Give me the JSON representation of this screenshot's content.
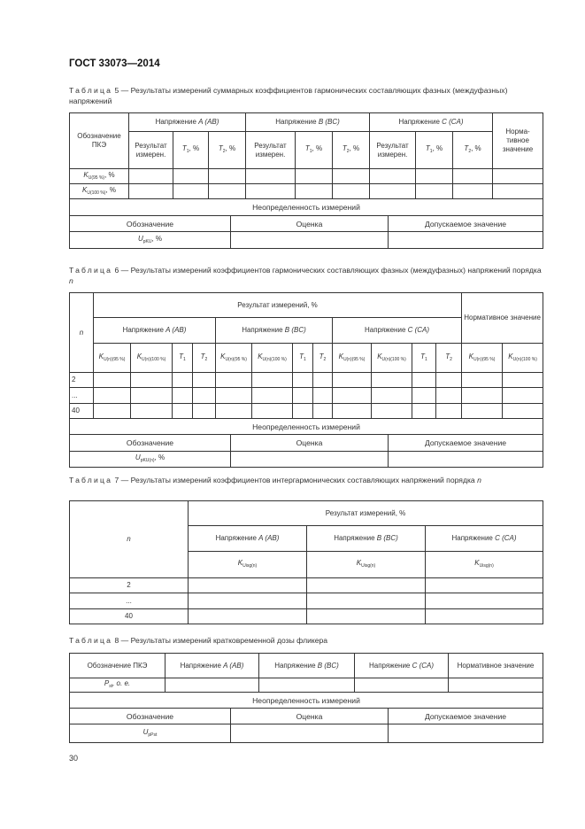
{
  "header": {
    "title": "ГОСТ 33073—2014"
  },
  "page_number": "30",
  "common": {
    "uncertainty": "Неопределенность измерений",
    "designation": "Обозначение",
    "estimate": "Оценка",
    "allowed": "Допускаемое значение",
    "voltA": "Напряжение ",
    "voltA_it": "A (AB)",
    "voltB_it": "B (BC)",
    "voltC_it": "C (CA)",
    "result": "Результат измерений, %",
    "normative": "Нормативное значение",
    "n": "n",
    "row_2": "2",
    "row_dots": "...",
    "row_40": "40"
  },
  "table5": {
    "label": "Таблица",
    "caption": " 5 — Результаты измерений суммарных коэффициентов гармонических составляющих фазных (междуфазных) напряжений",
    "col_pke": "Обозначение ПКЭ",
    "col_norm": "Норма-тивное значение",
    "col_result": "Результат измерен.",
    "T1": "T",
    "T1_sub": "1",
    "T2_sub": "2",
    "pct": ", %",
    "rows": [
      {
        "main": "K",
        "sub": "U(95 %)",
        "suffix": ", %"
      },
      {
        "main": "K",
        "sub": "U(100 %)",
        "suffix": ", %"
      }
    ],
    "unc": {
      "main": "U",
      "sub": "pKU",
      "suffix": ", %"
    }
  },
  "table6": {
    "label": "Таблица",
    "caption": " 6 — Результаты измерений коэффициентов гармонических составляющих фазных (междуфазных) напряжений порядка ",
    "caption_it": "n",
    "k95": "U(n)(95 %)",
    "k100": "U(n)(100 %)",
    "K": "K",
    "T": "T",
    "T1_sub": "1",
    "T2_sub": "2",
    "unc": {
      "main": "U",
      "sub": "pKU(n)",
      "suffix": ", %"
    }
  },
  "table7": {
    "label": "Таблица",
    "caption": " 7 — Результаты измерений коэффициентов интергармонических составляющих напряжений порядка ",
    "caption_it": "n",
    "K": "K",
    "Ksub": "Uisg(n)"
  },
  "table8": {
    "label": "Таблица",
    "caption": " 8 — Результаты измерений кратковременной дозы фликера",
    "col_pke": "Обозначение ПКЭ",
    "col_norm": "Нормативное значение",
    "row": {
      "main": "P",
      "sub": "st",
      "suffix": ", о. е."
    },
    "unc": {
      "main": "U",
      "sub": "pPst"
    }
  }
}
